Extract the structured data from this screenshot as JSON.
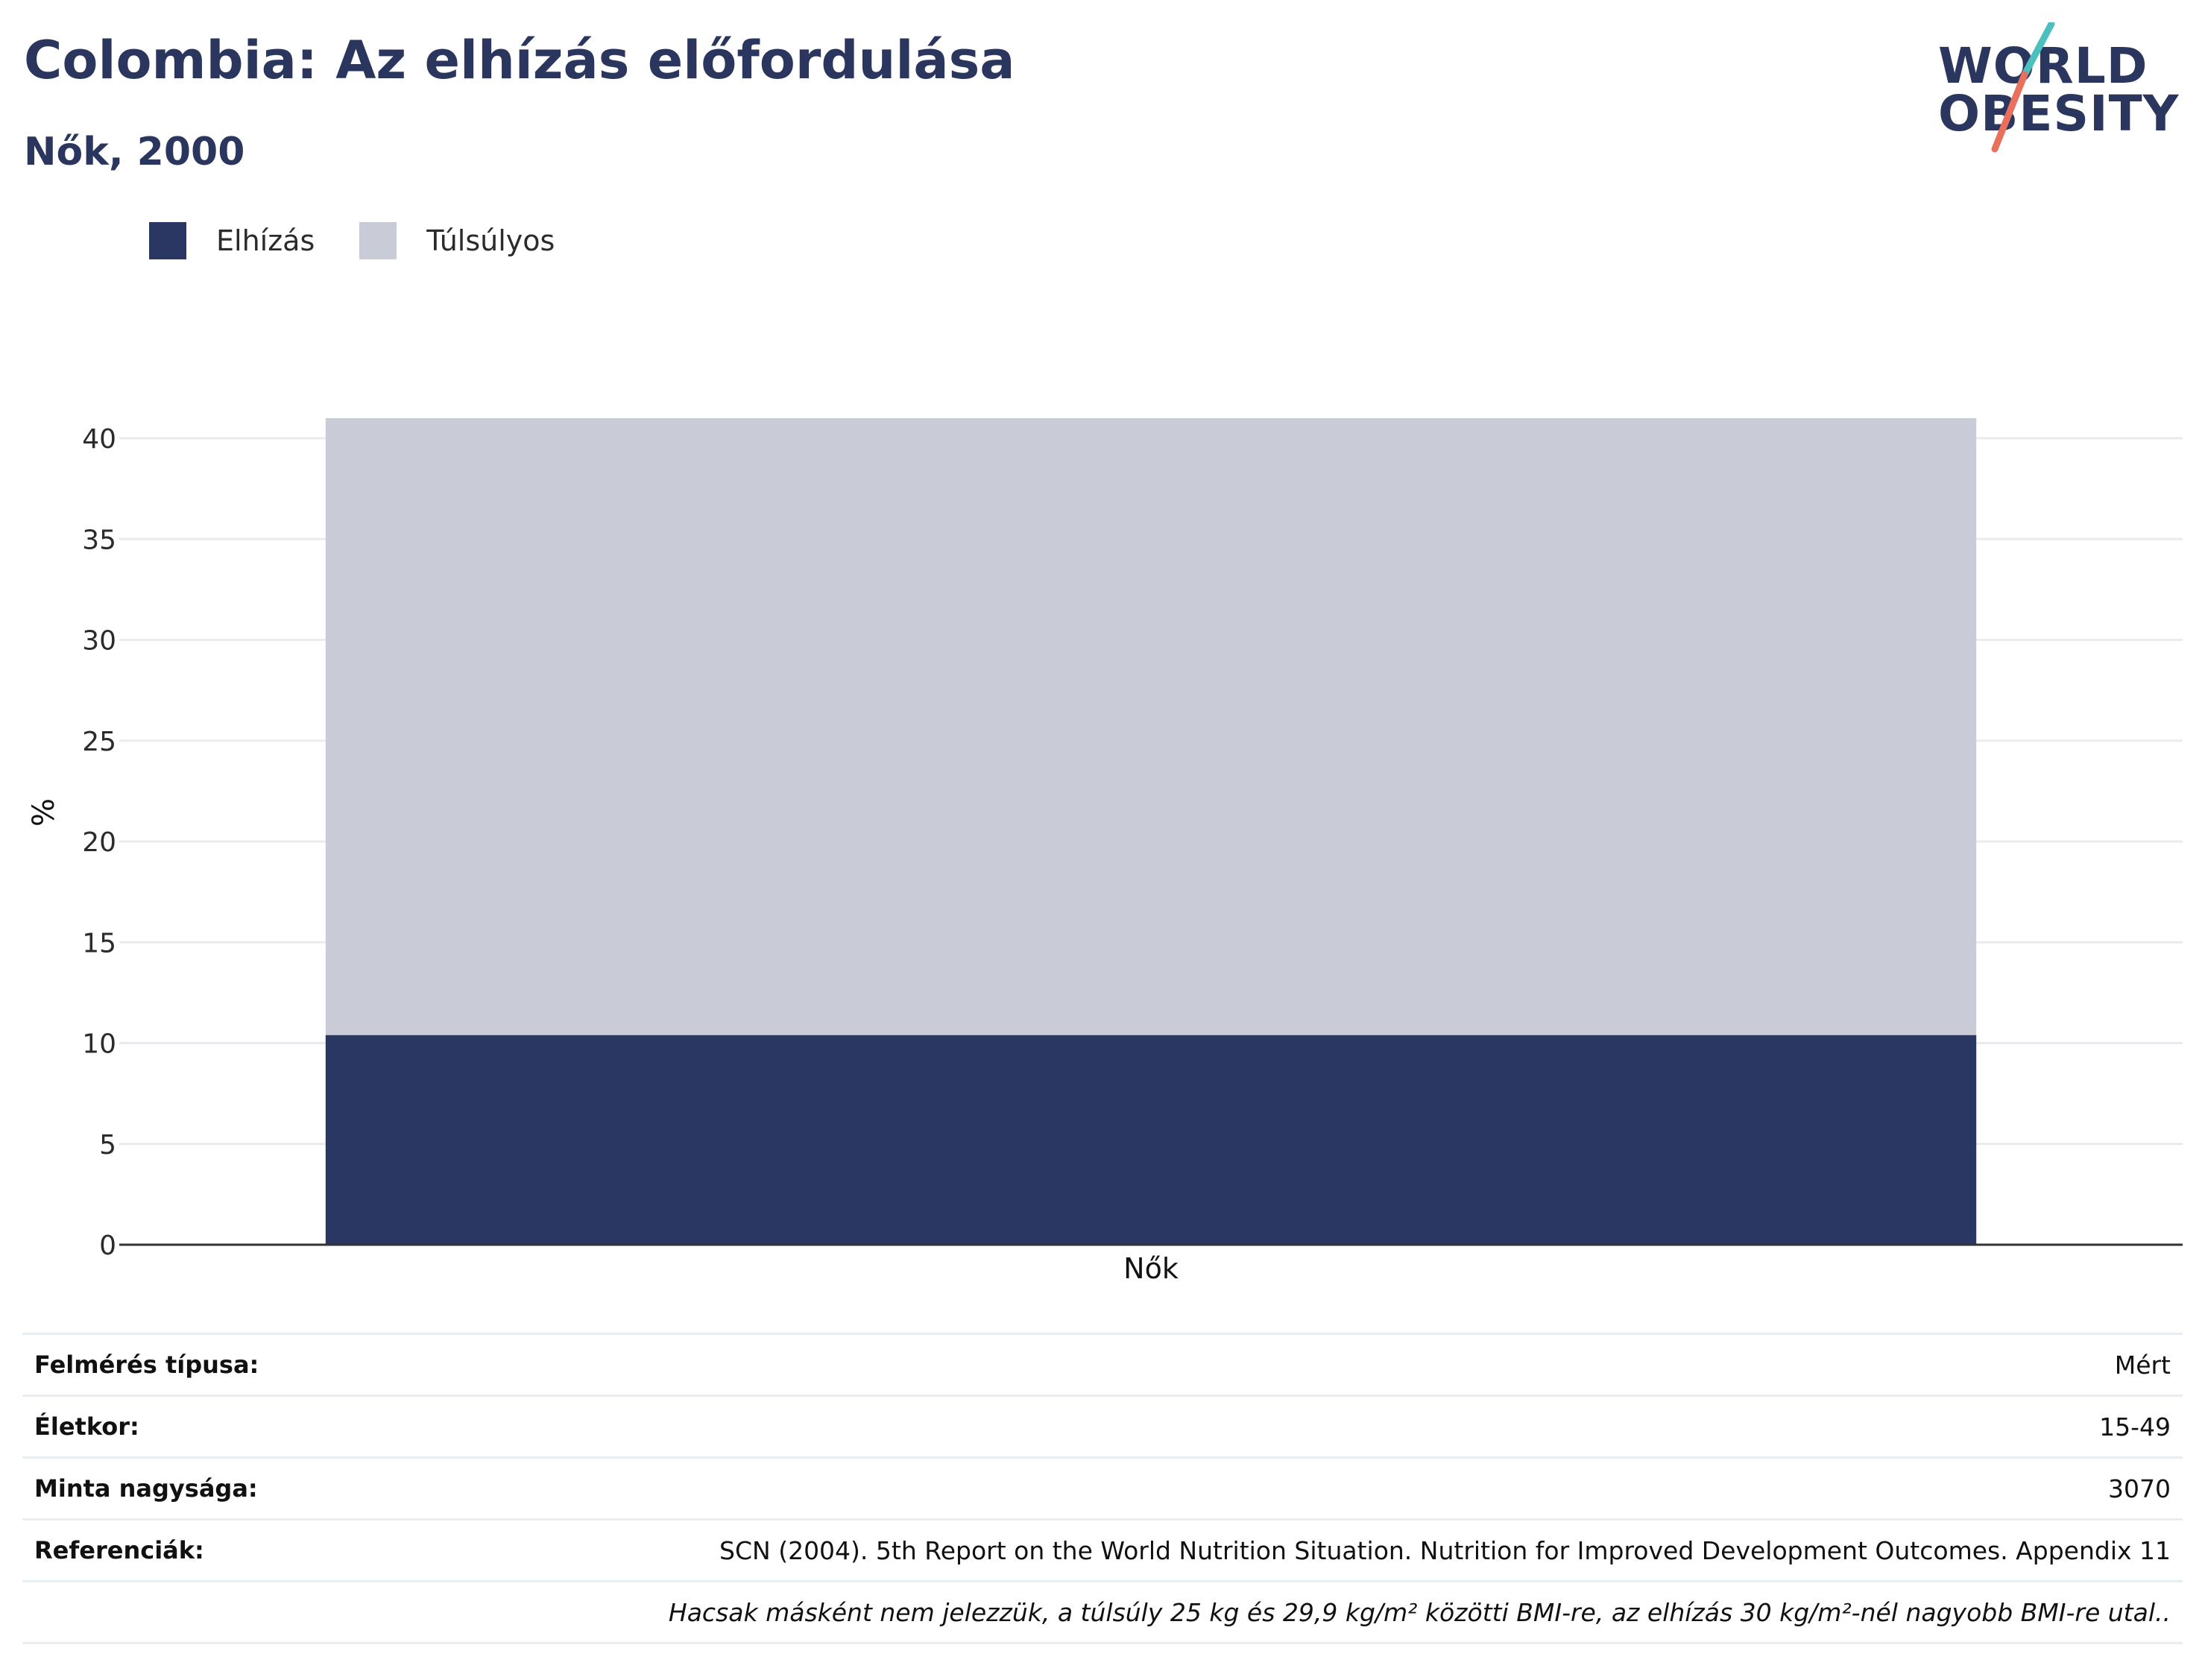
{
  "header": {
    "title": "Colombia: Az elhízás előfordulása",
    "subtitle": "Nők, 2000"
  },
  "logo": {
    "line1": "WORLD",
    "line2": "OBESITY",
    "text_color": "#2b365f",
    "slash_colors": [
      "#4ebfbf",
      "#e8705c"
    ]
  },
  "legend": [
    {
      "label": "Elhízás",
      "color": "#2b3763"
    },
    {
      "label": "Túlsúlyos",
      "color": "#c9ccd7"
    }
  ],
  "chart_data": {
    "type": "bar",
    "stacked": true,
    "categories": [
      "Nők"
    ],
    "series": [
      {
        "name": "Elhízás",
        "values": [
          10.4
        ],
        "color": "#2b3763"
      },
      {
        "name": "Túlsúlyos",
        "values": [
          30.6
        ],
        "color": "#c9ccd7"
      }
    ],
    "title": "Colombia: Az elhízás előfordulása",
    "subtitle": "Nők, 2000",
    "xlabel": "",
    "ylabel": "%",
    "ylim": [
      0,
      41
    ],
    "yticks": [
      0,
      5,
      10,
      15,
      20,
      25,
      30,
      35,
      40
    ],
    "grid": true,
    "legend_position": "top-left"
  },
  "info": {
    "rows": [
      {
        "key": "Felmérés típusa:",
        "value": "Mért"
      },
      {
        "key": "Életkor:",
        "value": "15-49"
      },
      {
        "key": "Minta nagysága:",
        "value": "3070"
      },
      {
        "key": "Referenciák:",
        "value": "SCN (2004). 5th Report on the World Nutrition Situation. Nutrition for Improved Development Outcomes. Appendix 11"
      }
    ],
    "note": "Hacsak másként nem jelezzük, a túlsúly 25 kg és 29,9 kg/m² közötti BMI-re, az elhízás 30 kg/m²-nél nagyobb BMI-re utal.."
  }
}
